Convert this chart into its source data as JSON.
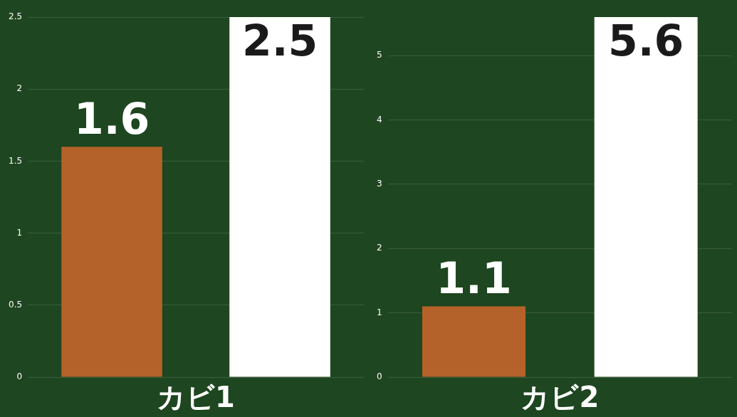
{
  "chart_data": [
    {
      "type": "bar",
      "xlabel": "カビ1",
      "categories": [
        null,
        null
      ],
      "colors": [
        "#b5612a",
        "#ffffff"
      ],
      "values": [
        1.6,
        2.5
      ],
      "ylim": [
        0,
        2.5
      ],
      "yticks": [
        0,
        0.5,
        1,
        1.5,
        2,
        2.5
      ],
      "grid": "y",
      "data_labels": true,
      "legend": false
    },
    {
      "type": "bar",
      "xlabel": "カビ2",
      "categories": [
        null,
        null
      ],
      "colors": [
        "#b5612a",
        "#ffffff"
      ],
      "values": [
        1.1,
        5.6
      ],
      "ylim": [
        0,
        5.6
      ],
      "yticks": [
        0,
        1,
        2,
        3,
        4,
        5
      ],
      "grid": "y",
      "data_labels": true,
      "legend": false
    }
  ]
}
